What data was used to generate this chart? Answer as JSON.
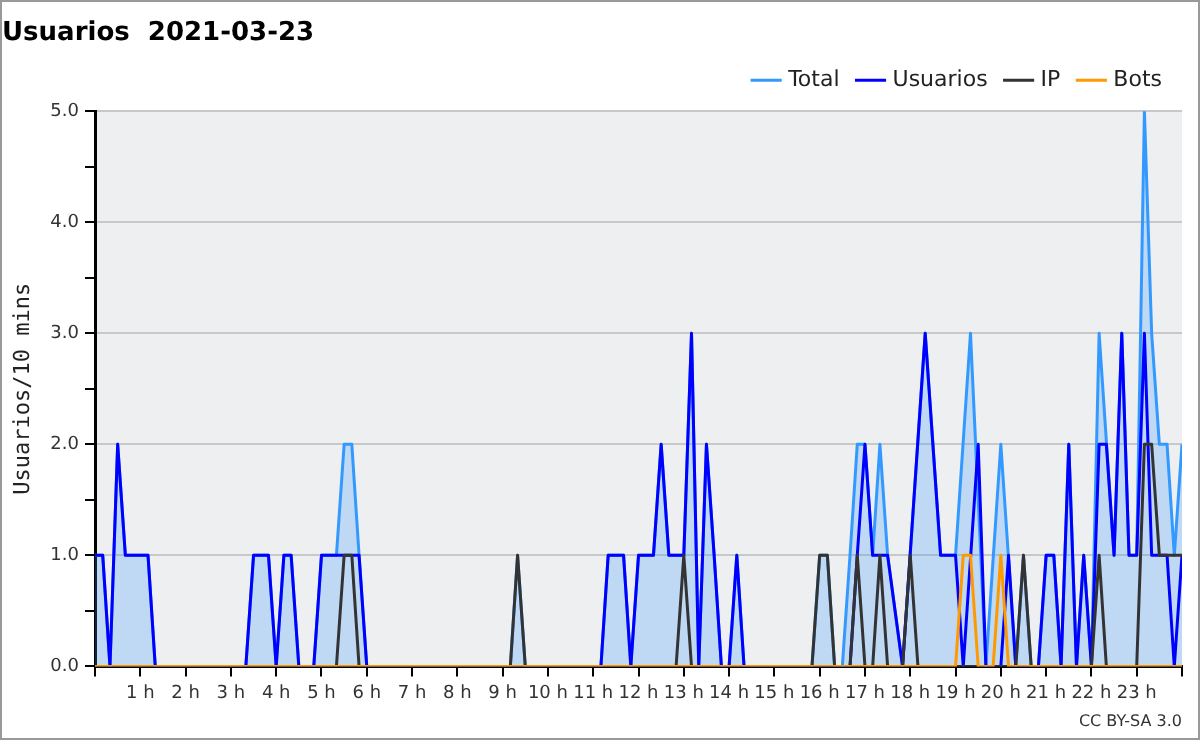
{
  "chart_data": {
    "type": "line",
    "title": "Usuarios  2021-03-23",
    "ylabel": "Usuarios/10 mins",
    "annotations": [
      "CC BY-SA 3.0"
    ],
    "xlim": [
      0,
      24
    ],
    "xticks": [
      {
        "value": 0,
        "label": null
      },
      {
        "value": 1,
        "label": "1 h"
      },
      {
        "value": 2,
        "label": "2 h"
      },
      {
        "value": 3,
        "label": "3 h"
      },
      {
        "value": 4,
        "label": "4 h"
      },
      {
        "value": 5,
        "label": "5 h"
      },
      {
        "value": 6,
        "label": "6 h"
      },
      {
        "value": 7,
        "label": "7 h"
      },
      {
        "value": 8,
        "label": "8 h"
      },
      {
        "value": 9,
        "label": "9 h"
      },
      {
        "value": 10,
        "label": "10 h"
      },
      {
        "value": 11,
        "label": "11 h"
      },
      {
        "value": 12,
        "label": "12 h"
      },
      {
        "value": 13,
        "label": "13 h"
      },
      {
        "value": 14,
        "label": "14 h"
      },
      {
        "value": 15,
        "label": "15 h"
      },
      {
        "value": 16,
        "label": "16 h"
      },
      {
        "value": 17,
        "label": "17 h"
      },
      {
        "value": 18,
        "label": "18 h"
      },
      {
        "value": 19,
        "label": "19 h"
      },
      {
        "value": 20,
        "label": "20 h"
      },
      {
        "value": 21,
        "label": "21 h"
      },
      {
        "value": 22,
        "label": "22 h"
      },
      {
        "value": 23,
        "label": "23 h"
      },
      {
        "value": 24,
        "label": null
      }
    ],
    "ylim": [
      0,
      5
    ],
    "yticks": [
      {
        "value": 0,
        "label": "0.0"
      },
      {
        "value": 0.5,
        "label": null
      },
      {
        "value": 1,
        "label": "1.0"
      },
      {
        "value": 1.5,
        "label": null
      },
      {
        "value": 2,
        "label": "2.0"
      },
      {
        "value": 2.5,
        "label": null
      },
      {
        "value": 3,
        "label": "3.0"
      },
      {
        "value": 3.5,
        "label": null
      },
      {
        "value": 4,
        "label": "4.0"
      },
      {
        "value": 4.5,
        "label": null
      },
      {
        "value": 5,
        "label": "5.0"
      }
    ],
    "grid": "y",
    "legend": "top right",
    "marker": "none",
    "line_style": "solid",
    "series": [
      {
        "name": "Total",
        "type": "area",
        "color": "#3399ff",
        "x": [
          0,
          0.17,
          0.33,
          0.5,
          0.67,
          1.17,
          1.33,
          3.33,
          3.5,
          3.83,
          4.0,
          4.17,
          4.33,
          4.5,
          4.83,
          5.0,
          5.33,
          5.5,
          5.67,
          5.83,
          6.0,
          9.17,
          9.33,
          9.5,
          11.17,
          11.33,
          11.67,
          11.83,
          12.0,
          12.33,
          12.5,
          12.67,
          12.83,
          13.0,
          13.17,
          13.33,
          13.5,
          13.67,
          13.83,
          14.0,
          14.17,
          14.33,
          15.83,
          16.0,
          16.17,
          16.33,
          16.5,
          16.67,
          16.83,
          17.0,
          17.17,
          17.33,
          17.5,
          17.83,
          18.33,
          18.67,
          19.0,
          19.33,
          19.67,
          20.0,
          20.33,
          20.5,
          20.67,
          20.83,
          21.0,
          21.17,
          21.33,
          21.5,
          21.67,
          21.83,
          22.0,
          22.17,
          22.5,
          22.67,
          22.83,
          23.0,
          23.17,
          23.33,
          23.5,
          23.67,
          23.83,
          24.0
        ],
        "values": [
          1,
          1,
          0,
          2,
          1,
          1,
          0,
          0,
          1,
          1,
          0,
          1,
          1,
          0,
          0,
          1,
          1,
          2,
          2,
          1,
          0,
          0,
          1,
          0,
          0,
          1,
          1,
          0,
          1,
          1,
          2,
          1,
          1,
          1,
          3,
          0,
          2,
          1,
          0,
          0,
          1,
          0,
          0,
          1,
          1,
          0,
          0,
          1,
          2,
          2,
          1,
          2,
          1,
          0,
          3,
          1,
          1,
          3,
          0,
          2,
          0,
          1,
          0,
          0,
          1,
          1,
          0,
          2,
          0,
          1,
          0,
          3,
          1,
          3,
          1,
          1,
          5,
          3,
          2,
          2,
          1,
          2
        ]
      },
      {
        "name": "Usuarios",
        "type": "line",
        "color": "#0000ff",
        "x": [
          0,
          0.17,
          0.33,
          0.5,
          0.67,
          1.17,
          1.33,
          3.33,
          3.5,
          3.83,
          4.0,
          4.17,
          4.33,
          4.5,
          4.83,
          5.0,
          5.83,
          6.0,
          11.17,
          11.33,
          11.67,
          11.83,
          12.0,
          12.33,
          12.5,
          12.67,
          12.83,
          13.0,
          13.17,
          13.33,
          13.5,
          13.67,
          13.83,
          14.0,
          14.17,
          14.33,
          16.67,
          16.83,
          17.0,
          17.17,
          17.5,
          17.83,
          18.33,
          18.67,
          19.0,
          19.17,
          19.5,
          19.67,
          20.0,
          20.17,
          20.33,
          20.83,
          21.0,
          21.17,
          21.33,
          21.5,
          21.67,
          21.83,
          22.0,
          22.17,
          22.33,
          22.5,
          22.67,
          22.83,
          23.0,
          23.17,
          23.33,
          23.67,
          23.83,
          24.0
        ],
        "values": [
          1,
          1,
          0,
          2,
          1,
          1,
          0,
          0,
          1,
          1,
          0,
          1,
          1,
          0,
          0,
          1,
          1,
          0,
          0,
          1,
          1,
          0,
          1,
          1,
          2,
          1,
          1,
          1,
          3,
          0,
          2,
          1,
          0,
          0,
          1,
          0,
          0,
          1,
          2,
          1,
          1,
          0,
          3,
          1,
          1,
          0,
          2,
          0,
          0,
          1,
          0,
          0,
          1,
          1,
          0,
          2,
          0,
          1,
          0,
          2,
          2,
          1,
          3,
          1,
          1,
          3,
          1,
          1,
          0,
          1
        ]
      },
      {
        "name": "IP",
        "type": "line",
        "color": "#333333",
        "x": [
          0,
          5.33,
          5.5,
          5.67,
          5.83,
          9.17,
          9.33,
          9.5,
          12.83,
          13.0,
          13.17,
          15.83,
          16.0,
          16.17,
          16.33,
          16.67,
          16.83,
          17.0,
          17.17,
          17.33,
          17.5,
          17.83,
          18.0,
          18.17,
          20.33,
          20.5,
          20.67,
          22.0,
          22.17,
          22.33,
          23.0,
          23.17,
          23.33,
          23.5,
          24.0
        ],
        "values": [
          0,
          0,
          1,
          1,
          0,
          0,
          1,
          0,
          0,
          1,
          0,
          0,
          1,
          1,
          0,
          0,
          1,
          0,
          0,
          1,
          0,
          0,
          1,
          0,
          0,
          1,
          0,
          0,
          1,
          0,
          0,
          2,
          2,
          1,
          1
        ]
      },
      {
        "name": "Bots",
        "type": "line",
        "color": "#ff9900",
        "x": [
          0,
          19.0,
          19.17,
          19.33,
          19.5,
          19.83,
          20.0,
          20.17,
          24.0
        ],
        "values": [
          0,
          0,
          1,
          1,
          0,
          0,
          1,
          0,
          0
        ]
      }
    ]
  }
}
